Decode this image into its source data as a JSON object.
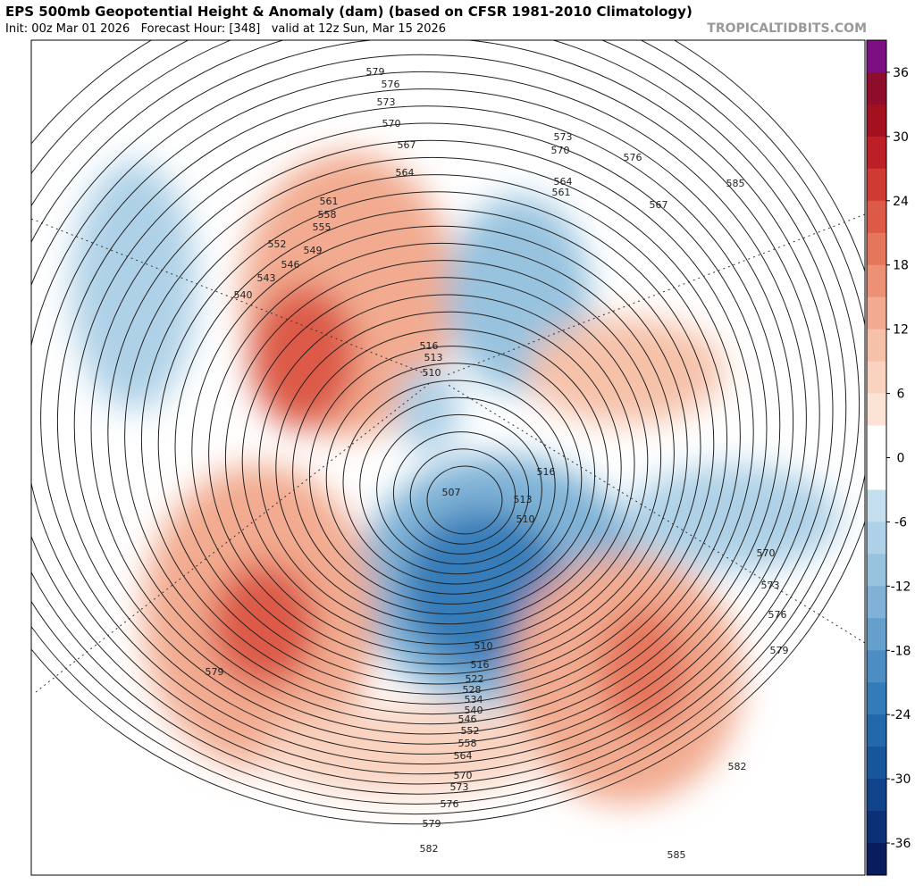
{
  "header": {
    "title": "EPS 500mb Geopotential Height & Anomaly (dam) (based on CFSR 1981-2010 Climatology)",
    "subtitle": "Init: 00z Mar 01 2026   Forecast Hour: [348]   valid at 12z Sun, Mar 15 2026",
    "watermark": "TROPICALTIDBITS.COM"
  },
  "colorbar": {
    "lim": [
      -39,
      39
    ],
    "ticks": [
      36,
      30,
      24,
      18,
      12,
      6,
      0,
      -6,
      -12,
      -18,
      -24,
      -30,
      -36
    ],
    "colors": [
      "#7d0f82",
      "#8e0d2a",
      "#a3111f",
      "#bd1f26",
      "#cf3a33",
      "#dc5a46",
      "#e5765c",
      "#ec9175",
      "#f2ab90",
      "#f6c1a9",
      "#f9d3c0",
      "#fbe3d6",
      "#ffffff",
      "#ffffff",
      "#c6dfee",
      "#afd1e7",
      "#97c3df",
      "#7fb2d6",
      "#65a0cc",
      "#4c8ec3",
      "#347cb8",
      "#2268ab",
      "#17569a",
      "#10438a",
      "#0b3076",
      "#091d5e"
    ]
  },
  "contour_labels": [
    579,
    576,
    573,
    570,
    567,
    564,
    561,
    558,
    555,
    552,
    549,
    546,
    543,
    540,
    516,
    513,
    510,
    573,
    570,
    564,
    561,
    576,
    567,
    585,
    516,
    507,
    513,
    510,
    570,
    573,
    576,
    579,
    582,
    585,
    579,
    582,
    579,
    576,
    573,
    570,
    564,
    558,
    552,
    546,
    540,
    534,
    528,
    522,
    516,
    510
  ]
}
